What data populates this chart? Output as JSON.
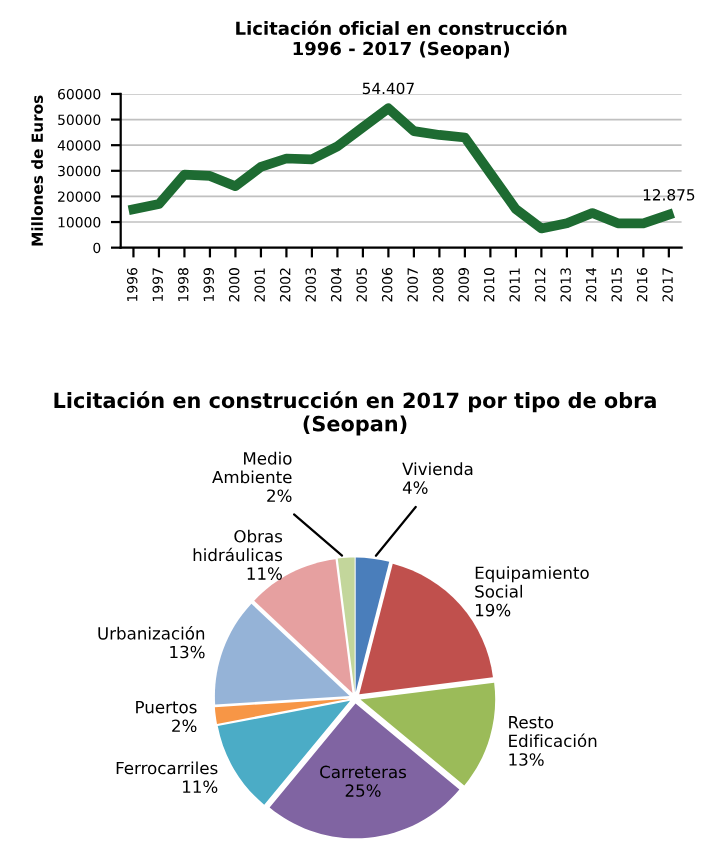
{
  "chart_data": [
    {
      "type": "line",
      "title": "Licitación oficial en construcción\n1996 - 2017 (Seopan)",
      "ylabel": "Millones de Euros",
      "categories": [
        "1996",
        "1997",
        "1998",
        "1999",
        "2000",
        "2001",
        "2002",
        "2003",
        "2004",
        "2005",
        "2006",
        "2007",
        "2008",
        "2009",
        "2010",
        "2011",
        "2012",
        "2013",
        "2014",
        "2015",
        "2016",
        "2017"
      ],
      "series": [
        {
          "color": "#1e6b32",
          "values": [
            15000,
            17000,
            28500,
            28000,
            24000,
            31500,
            34800,
            34500,
            39500,
            47000,
            54407,
            45500,
            44000,
            43000,
            29000,
            15000,
            7500,
            9500,
            13500,
            9500,
            9500,
            12875
          ],
          "value_labels": [
            null,
            null,
            null,
            null,
            null,
            null,
            null,
            null,
            null,
            null,
            "54.407",
            null,
            null,
            null,
            null,
            null,
            null,
            null,
            null,
            null,
            null,
            "12.875"
          ]
        }
      ],
      "ylim": [
        0,
        60000
      ],
      "yticks": [
        0,
        10000,
        20000,
        30000,
        40000,
        50000,
        60000
      ],
      "grid": "y",
      "legend": false,
      "marker": "none",
      "line_style": "solid"
    },
    {
      "type": "pie",
      "title": "Licitación en construcción en 2017 por tipo de obra (Seopan)",
      "categories": [
        "Vivienda",
        "Equipamiento\nSocial",
        "Resto\nEdificación",
        "Carreteras",
        "Ferrocarriles",
        "Puertos",
        "Urbanización",
        "Obras\nhidráulicas",
        "Medio\nAmbiente"
      ],
      "values": [
        4,
        19,
        13,
        25,
        11,
        2,
        13,
        11,
        2
      ],
      "value_labels": [
        "4%",
        "19%",
        "13%",
        "25%",
        "11%",
        "2%",
        "13%",
        "11%",
        "2%"
      ],
      "colors": [
        "#4a7ebb",
        "#c0504d",
        "#9bbb59",
        "#8064a2",
        "#4bacc6",
        "#f79646",
        "#95b3d7",
        "#e6a0a0",
        "#c3d69b"
      ]
    }
  ]
}
